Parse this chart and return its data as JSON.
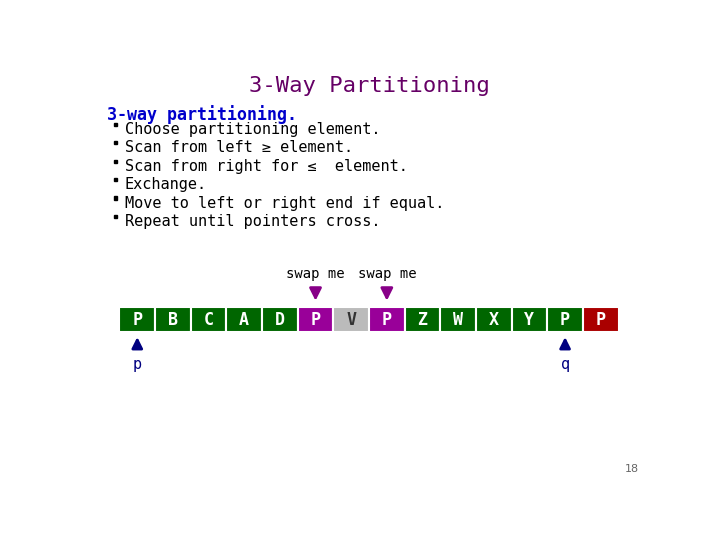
{
  "title": "3-Way Partitioning",
  "title_color": "#660066",
  "subtitle": "3-way partitioning.",
  "subtitle_color": "#0000cc",
  "bullets": [
    "Choose partitioning element.",
    "Scan from left ≥ element.",
    "Scan from right for ≤  element.",
    "Exchange.",
    "Move to left or right end if equal.",
    "Repeat until pointers cross."
  ],
  "bullet_color": "#000000",
  "array_labels": [
    "P",
    "B",
    "C",
    "A",
    "D",
    "P",
    "V",
    "P",
    "Z",
    "W",
    "X",
    "Y",
    "P",
    "P"
  ],
  "array_colors": [
    "#006600",
    "#006600",
    "#006600",
    "#006600",
    "#006600",
    "#990099",
    "#bbbbbb",
    "#990099",
    "#006600",
    "#006600",
    "#006600",
    "#006600",
    "#006600",
    "#aa0000"
  ],
  "swap_me_indices": [
    5,
    7
  ],
  "pointer_p_index": 0,
  "pointer_q_index": 12,
  "arrow_color": "#000080",
  "swap_arrow_color": "#880088",
  "background_color": "#ffffff",
  "page_number": "18",
  "title_fontsize": 16,
  "subtitle_fontsize": 12,
  "bullet_fontsize": 11,
  "array_fontsize": 12
}
